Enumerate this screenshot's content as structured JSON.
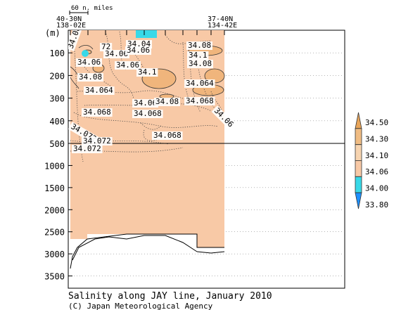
{
  "chart_data": {
    "type": "contour-section",
    "title": "Salinity along JAY line, January 2010",
    "credit": "(C) Japan Meteorological Agency",
    "yunit": "(m)",
    "y_ticks": [
      100,
      200,
      300,
      400,
      500,
      1000,
      1500,
      2000,
      2500,
      3000,
      3500
    ],
    "y_break": 500,
    "scale_label": "60 n. miles",
    "left_station": {
      "lat": "40-30N",
      "lon": "138-02E"
    },
    "right_station": {
      "lat": "37-40N",
      "lon": "134-42E"
    },
    "legend": {
      "levels": [
        "34.50",
        "34.30",
        "34.10",
        "34.06",
        "34.00",
        "33.80"
      ],
      "colors": [
        "#e8a55a",
        "#f0bc83",
        "#f7d4b0",
        "#f8c9a6",
        "#38d9e8",
        "#1e90ff"
      ]
    },
    "contour_labels": [
      "34.08",
      "72",
      "34.04",
      "34.06",
      "34.06",
      "34.08",
      "34.06",
      "34.06",
      "34.1",
      "34.1",
      "34.08",
      "34.08",
      "34.064",
      "34.064",
      "34.06",
      "34.08",
      "34.068",
      "34.068",
      "34.068",
      "34.072",
      "34.068",
      "34.072",
      "34.072",
      "34.06"
    ]
  }
}
